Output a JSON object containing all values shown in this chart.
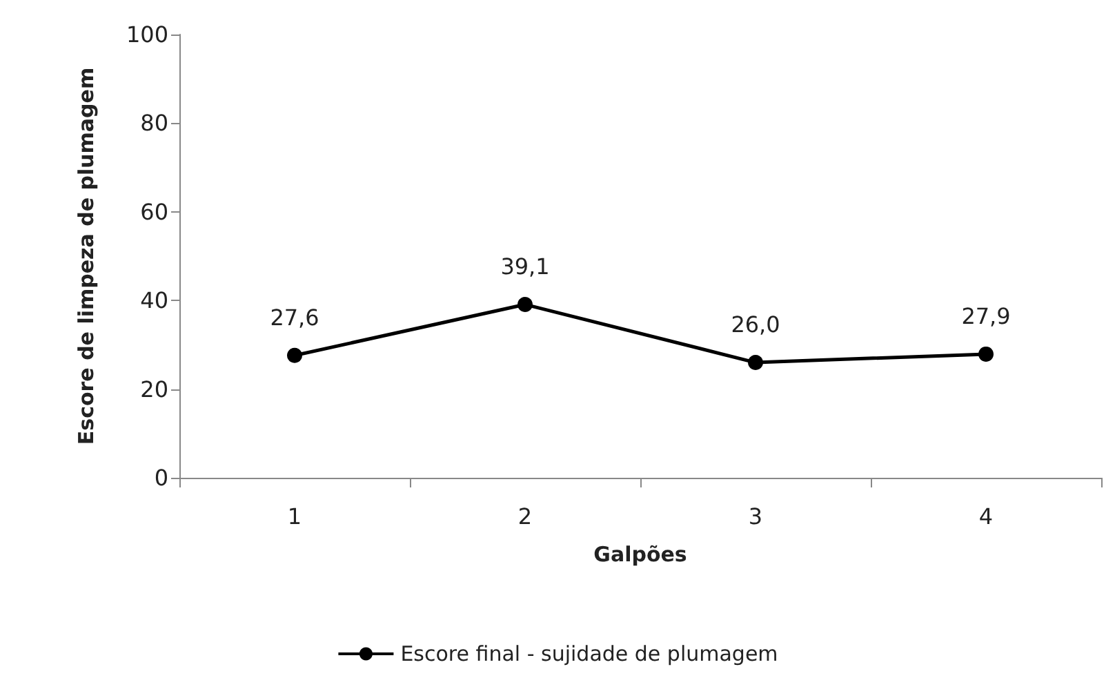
{
  "chart_data": {
    "type": "line",
    "xlabel": "Galpões",
    "ylabel": "Escore de limpeza de plumagem",
    "categories": [
      "1",
      "2",
      "3",
      "4"
    ],
    "series": [
      {
        "name": "Escore final - sujidade de plumagem",
        "color": "#000000",
        "values": [
          27.6,
          39.1,
          26.0,
          27.9
        ],
        "value_labels": [
          "27,6",
          "39,1",
          "26,0",
          "27,9"
        ]
      }
    ],
    "ylim": [
      0,
      100
    ],
    "yticks": [
      0,
      20,
      40,
      60,
      80,
      100
    ],
    "grid": false,
    "legend": "bottom",
    "marker": "circle",
    "line_style": "solid"
  }
}
